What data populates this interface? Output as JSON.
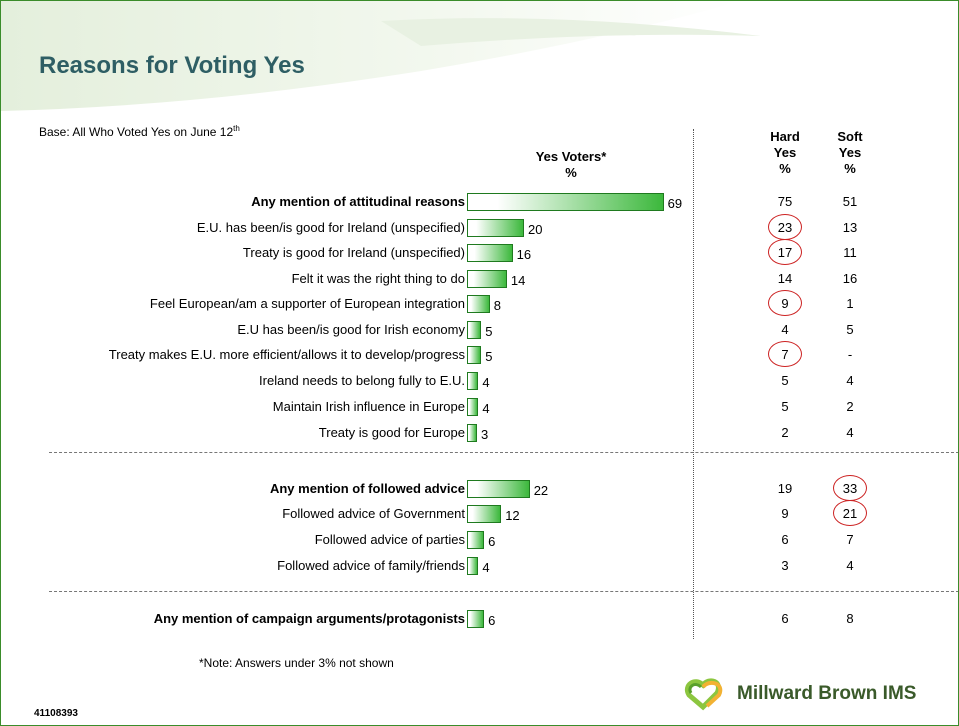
{
  "title": "Reasons for Voting Yes",
  "base": {
    "text": "Base: All Who Voted Yes on June 12",
    "sup": "th"
  },
  "headers": {
    "yes_voters": "Yes Voters*",
    "yes_voters_unit": "%",
    "hard_yes_1": "Hard",
    "hard_yes_2": "Yes",
    "hard_yes_unit": "%",
    "soft_yes_1": "Soft",
    "soft_yes_2": "Yes",
    "soft_yes_unit": "%"
  },
  "colors": {
    "bar_start": "#ffffff",
    "bar_end": "#3cb83c",
    "bar_border": "#1f7a1f",
    "title": "#2e5e64",
    "circle": "#cc2222"
  },
  "note": "*Note: Answers under 3% not shown",
  "job_number": "41108393",
  "logo_text": "Millward Brown IMS",
  "chart_data": {
    "type": "bar",
    "orientation": "horizontal",
    "title": "Reasons for Voting Yes",
    "categories": [
      "Any mention of attitudinal reasons",
      "E.U. has been/is good for Ireland (unspecified)",
      "Treaty is good for Ireland (unspecified)",
      "Felt it was the right thing to do",
      "Feel European/am a supporter of European integration",
      "E.U has been/is good for Irish economy",
      "Treaty makes E.U. more efficient/allows it to develop/progress",
      "Ireland needs to belong fully to E.U.",
      "Maintain Irish influence in Europe",
      "Treaty is good for Europe",
      "Any mention of followed advice",
      "Followed advice of Government",
      "Followed advice of parties",
      "Followed advice of family/friends",
      "Any mention of campaign arguments/protagonists"
    ],
    "bold": [
      true,
      false,
      false,
      false,
      false,
      false,
      false,
      false,
      false,
      false,
      true,
      false,
      false,
      false,
      true
    ],
    "series": [
      {
        "name": "Yes Voters*",
        "values": [
          69,
          20,
          16,
          14,
          8,
          5,
          5,
          4,
          4,
          3,
          22,
          12,
          6,
          4,
          6
        ]
      },
      {
        "name": "Hard Yes",
        "values": [
          "75",
          "23",
          "17",
          "14",
          "9",
          "4",
          "7",
          "5",
          "5",
          "2",
          "19",
          "9",
          "6",
          "3",
          "6"
        ]
      },
      {
        "name": "Soft Yes",
        "values": [
          "51",
          "13",
          "11",
          "16",
          "1",
          "5",
          "-",
          "4",
          "2",
          "4",
          "33",
          "21",
          "7",
          "4",
          "8"
        ]
      }
    ],
    "highlighted": {
      "hard_yes": [
        1,
        2,
        4,
        6
      ],
      "soft_yes": [
        10,
        11
      ]
    },
    "xlim": [
      0,
      100
    ]
  }
}
